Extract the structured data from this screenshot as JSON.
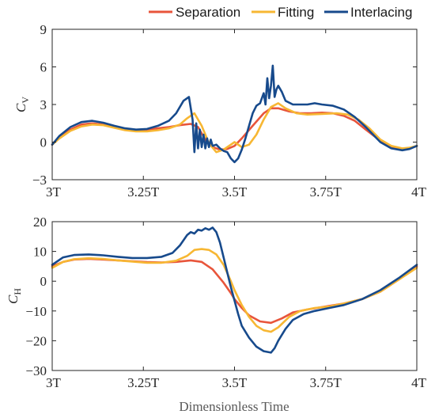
{
  "colors": {
    "separation": "#E8553B",
    "fitting": "#F7B733",
    "interlacing": "#174A8C",
    "axis": "#262626",
    "background": "#ffffff"
  },
  "legend": {
    "placement": "top-right",
    "entries": [
      "Separation",
      "Fitting",
      "Interlacing"
    ]
  },
  "xlabel": "Dimensionless Time",
  "chart_data": [
    {
      "type": "line",
      "ylabel": "C",
      "ylabel_sub": "V",
      "xlim": [
        3,
        4
      ],
      "ylim": [
        -3,
        9
      ],
      "xticks": [
        3,
        3.25,
        3.5,
        3.75,
        4
      ],
      "xtick_labels": [
        "3T",
        "3.25T",
        "3.5T",
        "3.75T",
        "4T"
      ],
      "yticks": [
        -3,
        0,
        3,
        6,
        9
      ],
      "ytick_labels": [
        "−3",
        "0",
        "3",
        "6",
        "9"
      ],
      "grid": false,
      "series": [
        {
          "name": "Separation",
          "color_key": "separation",
          "x": [
            3.0,
            3.02,
            3.05,
            3.08,
            3.11,
            3.14,
            3.17,
            3.2,
            3.23,
            3.26,
            3.29,
            3.32,
            3.35,
            3.38,
            3.4,
            3.42,
            3.44,
            3.46,
            3.48,
            3.5,
            3.52,
            3.55,
            3.58,
            3.6,
            3.62,
            3.65,
            3.68,
            3.71,
            3.74,
            3.77,
            3.8,
            3.83,
            3.86,
            3.9,
            3.93,
            3.96,
            3.98,
            4.0
          ],
          "y": [
            -0.2,
            0.4,
            1.0,
            1.4,
            1.5,
            1.4,
            1.2,
            1.0,
            0.95,
            1.0,
            1.1,
            1.2,
            1.35,
            1.45,
            1.2,
            0.2,
            -0.4,
            -0.6,
            -0.55,
            -0.3,
            0.3,
            1.3,
            2.3,
            2.7,
            2.7,
            2.45,
            2.3,
            2.3,
            2.35,
            2.3,
            2.1,
            1.7,
            1.0,
            0.1,
            -0.4,
            -0.6,
            -0.5,
            -0.3
          ]
        },
        {
          "name": "Fitting",
          "color_key": "fitting",
          "x": [
            3.0,
            3.02,
            3.05,
            3.08,
            3.11,
            3.14,
            3.17,
            3.2,
            3.23,
            3.26,
            3.29,
            3.32,
            3.35,
            3.37,
            3.39,
            3.41,
            3.43,
            3.45,
            3.47,
            3.49,
            3.5,
            3.52,
            3.54,
            3.56,
            3.58,
            3.6,
            3.62,
            3.64,
            3.67,
            3.7,
            3.74,
            3.78,
            3.81,
            3.84,
            3.87,
            3.9,
            3.93,
            3.96,
            3.98,
            4.0
          ],
          "y": [
            -0.2,
            0.3,
            0.9,
            1.25,
            1.4,
            1.35,
            1.15,
            0.95,
            0.85,
            0.85,
            0.95,
            1.1,
            1.4,
            1.9,
            2.3,
            1.3,
            -0.1,
            -0.8,
            -0.6,
            -0.2,
            0.0,
            -0.4,
            -0.2,
            0.6,
            1.8,
            2.8,
            3.1,
            2.7,
            2.3,
            2.2,
            2.25,
            2.3,
            2.2,
            1.8,
            1.1,
            0.2,
            -0.3,
            -0.5,
            -0.45,
            -0.3
          ]
        },
        {
          "name": "Interlacing",
          "color_key": "interlacing",
          "x": [
            3.0,
            3.02,
            3.05,
            3.08,
            3.11,
            3.14,
            3.17,
            3.2,
            3.23,
            3.26,
            3.29,
            3.32,
            3.34,
            3.36,
            3.375,
            3.385,
            3.39,
            3.395,
            3.4,
            3.405,
            3.41,
            3.415,
            3.42,
            3.425,
            3.43,
            3.435,
            3.44,
            3.45,
            3.46,
            3.47,
            3.48,
            3.49,
            3.5,
            3.51,
            3.52,
            3.53,
            3.54,
            3.55,
            3.56,
            3.57,
            3.58,
            3.585,
            3.59,
            3.595,
            3.6,
            3.605,
            3.61,
            3.615,
            3.62,
            3.63,
            3.64,
            3.66,
            3.68,
            3.7,
            3.72,
            3.74,
            3.77,
            3.8,
            3.83,
            3.86,
            3.9,
            3.93,
            3.96,
            3.98,
            4.0
          ],
          "y": [
            -0.2,
            0.5,
            1.2,
            1.6,
            1.7,
            1.55,
            1.3,
            1.1,
            1.0,
            1.05,
            1.3,
            1.7,
            2.3,
            3.3,
            3.6,
            1.8,
            -0.8,
            1.5,
            -0.5,
            1.0,
            -0.4,
            0.6,
            -0.5,
            0.3,
            -0.4,
            0.2,
            -0.3,
            -0.2,
            -0.5,
            -0.7,
            -0.8,
            -1.3,
            -1.6,
            -1.3,
            -0.6,
            0.3,
            1.3,
            2.3,
            2.9,
            3.1,
            3.9,
            3.0,
            5.1,
            3.5,
            4.5,
            6.1,
            3.6,
            4.2,
            4.5,
            4.0,
            3.3,
            3.0,
            3.0,
            3.0,
            3.1,
            3.0,
            2.9,
            2.6,
            2.0,
            1.2,
            0.0,
            -0.5,
            -0.65,
            -0.55,
            -0.3
          ]
        }
      ]
    },
    {
      "type": "line",
      "ylabel": "C",
      "ylabel_sub": "H",
      "xlim": [
        3,
        4
      ],
      "ylim": [
        -30,
        20
      ],
      "xticks": [
        3,
        3.25,
        3.5,
        3.75,
        4
      ],
      "xtick_labels": [
        "3T",
        "3.25T",
        "3.5T",
        "3.75T",
        "4T"
      ],
      "yticks": [
        -30,
        -20,
        -10,
        0,
        10,
        20
      ],
      "ytick_labels": [
        "−30",
        "−20",
        "−10",
        "0",
        "10",
        "20"
      ],
      "grid": false,
      "series": [
        {
          "name": "Separation",
          "color_key": "separation",
          "x": [
            3.0,
            3.03,
            3.06,
            3.1,
            3.14,
            3.18,
            3.22,
            3.26,
            3.3,
            3.34,
            3.38,
            3.41,
            3.44,
            3.47,
            3.49,
            3.5,
            3.52,
            3.54,
            3.57,
            3.6,
            3.63,
            3.66,
            3.7,
            3.75,
            3.8,
            3.85,
            3.9,
            3.95,
            4.0
          ],
          "y": [
            5.0,
            6.5,
            7.3,
            7.5,
            7.3,
            7.0,
            6.7,
            6.4,
            6.3,
            6.5,
            7.0,
            6.5,
            4.0,
            -0.5,
            -4.0,
            -6.0,
            -9.0,
            -11.5,
            -13.5,
            -14.0,
            -12.5,
            -10.5,
            -9.5,
            -8.5,
            -7.5,
            -6.0,
            -3.5,
            0.5,
            5.0
          ]
        },
        {
          "name": "Fitting",
          "color_key": "fitting",
          "x": [
            3.0,
            3.03,
            3.06,
            3.1,
            3.14,
            3.18,
            3.22,
            3.26,
            3.3,
            3.34,
            3.37,
            3.39,
            3.41,
            3.43,
            3.45,
            3.47,
            3.49,
            3.5,
            3.52,
            3.54,
            3.56,
            3.58,
            3.6,
            3.62,
            3.65,
            3.68,
            3.72,
            3.76,
            3.8,
            3.85,
            3.9,
            3.95,
            4.0
          ],
          "y": [
            4.5,
            6.5,
            7.4,
            7.7,
            7.5,
            7.0,
            6.6,
            6.2,
            6.2,
            6.9,
            8.5,
            10.5,
            10.8,
            10.5,
            9.0,
            5.5,
            0.0,
            -3.0,
            -8.0,
            -12.0,
            -15.0,
            -16.5,
            -17.0,
            -15.5,
            -12.0,
            -10.0,
            -9.0,
            -8.5,
            -7.5,
            -6.0,
            -3.5,
            0.5,
            4.5
          ]
        },
        {
          "name": "Interlacing",
          "color_key": "interlacing",
          "x": [
            3.0,
            3.03,
            3.06,
            3.1,
            3.14,
            3.18,
            3.22,
            3.26,
            3.3,
            3.33,
            3.35,
            3.37,
            3.38,
            3.39,
            3.4,
            3.41,
            3.42,
            3.43,
            3.44,
            3.45,
            3.46,
            3.47,
            3.48,
            3.49,
            3.5,
            3.51,
            3.52,
            3.54,
            3.56,
            3.58,
            3.6,
            3.61,
            3.62,
            3.64,
            3.66,
            3.69,
            3.72,
            3.76,
            3.8,
            3.85,
            3.9,
            3.95,
            4.0
          ],
          "y": [
            5.5,
            8.0,
            8.8,
            9.0,
            8.7,
            8.2,
            7.8,
            7.8,
            8.2,
            9.5,
            12.0,
            15.5,
            16.5,
            16.0,
            17.3,
            17.0,
            17.8,
            17.3,
            18.0,
            16.5,
            13.0,
            8.0,
            3.0,
            -2.0,
            -6.5,
            -11.0,
            -15.0,
            -19.0,
            -22.0,
            -23.5,
            -24.0,
            -22.5,
            -20.0,
            -16.0,
            -13.0,
            -11.0,
            -10.0,
            -9.0,
            -8.0,
            -6.0,
            -3.0,
            1.0,
            5.5
          ]
        }
      ]
    }
  ]
}
